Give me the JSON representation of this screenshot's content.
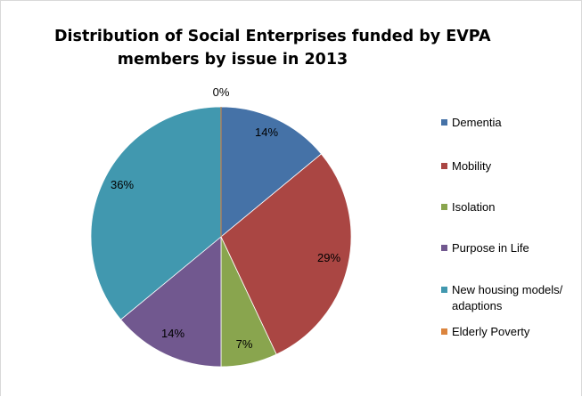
{
  "chart_data": {
    "type": "pie",
    "title_lines": [
      "Distribution of Social Enterprises funded by EVPA",
      "members  by issue in 2013"
    ],
    "slices": [
      {
        "name": "Dementia",
        "value": 14,
        "label": "14%",
        "color": "#4572a7"
      },
      {
        "name": "Mobility",
        "value": 29,
        "label": "29%",
        "color": "#aa4643"
      },
      {
        "name": "Isolation",
        "value": 7,
        "label": "7%",
        "color": "#89a54e"
      },
      {
        "name": "Purpose in Life",
        "value": 14,
        "label": "14%",
        "color": "#71588f"
      },
      {
        "name": "New housing models/ adaptions",
        "value": 36,
        "label": "36%",
        "color": "#4198af"
      },
      {
        "name": "Elderly Poverty",
        "value": 0,
        "label": "0%",
        "color": "#db843d"
      }
    ],
    "legend_position": "right",
    "start_angle": "12 o'clock, clockwise"
  }
}
